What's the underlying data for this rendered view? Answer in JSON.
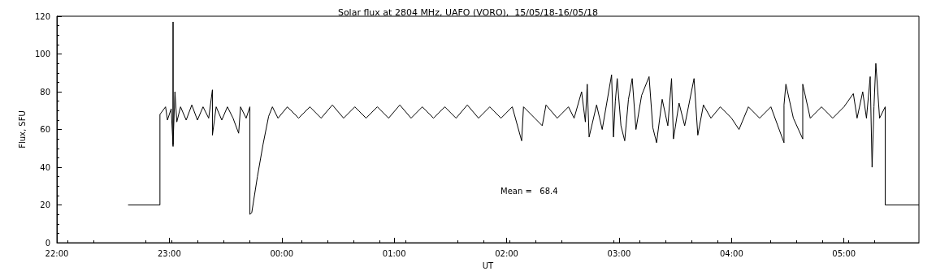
{
  "chart_data": {
    "type": "line",
    "title": "Solar flux at 2804 MHz, UAFO (VORO),  15/05/18-16/05/18",
    "xlabel": "UT",
    "ylabel": "Flux, SFU",
    "annotations": [
      "Mean =   68.4"
    ],
    "xlim": [
      "--05-15T22:00",
      "--05-16T05:40"
    ],
    "xticks": [
      {
        "value": "--05-15T22:00",
        "label": "22:00"
      },
      {
        "value": "--05-15T23:00",
        "label": "23:00"
      },
      {
        "value": "--05-16T00:00",
        "label": "00:00"
      },
      {
        "value": "--05-16T01:00",
        "label": "01:00"
      },
      {
        "value": "--05-16T02:00",
        "label": "02:00"
      },
      {
        "value": "--05-16T03:00",
        "label": "03:00"
      },
      {
        "value": "--05-16T04:00",
        "label": "04:00"
      },
      {
        "value": "--05-16T05:00",
        "label": "05:00"
      }
    ],
    "ylim": [
      0,
      120
    ],
    "yticks": [
      0,
      20,
      40,
      60,
      80,
      100,
      120
    ],
    "grid": false,
    "marker": "none",
    "line_style": "solid",
    "series": [
      {
        "color": "#000000",
        "x": [
          "--05-15T22:38",
          "--05-15T22:55",
          "--05-15T22:55",
          "--05-15T22:58",
          "--05-15T22:59",
          "--05-15T23:01",
          "--05-15T23:02",
          "--05-15T23:02",
          "--05-15T23:02",
          "--05-15T23:03",
          "--05-15T23:04",
          "--05-15T23:06",
          "--05-15T23:09",
          "--05-15T23:12",
          "--05-15T23:15",
          "--05-15T23:18",
          "--05-15T23:21",
          "--05-15T23:23",
          "--05-15T23:23",
          "--05-15T23:25",
          "--05-15T23:28",
          "--05-15T23:31",
          "--05-15T23:34",
          "--05-15T23:37",
          "--05-15T23:38",
          "--05-15T23:41",
          "--05-15T23:43",
          "--05-15T23:43",
          "--05-15T23:44",
          "--05-15T23:47",
          "--05-15T23:50",
          "--05-15T23:53",
          "--05-15T23:55",
          "--05-15T23:58",
          "--05-16T00:03",
          "--05-16T00:09",
          "--05-16T00:15",
          "--05-16T00:21",
          "--05-16T00:27",
          "--05-16T00:33",
          "--05-16T00:39",
          "--05-16T00:45",
          "--05-16T00:51",
          "--05-16T00:57",
          "--05-16T01:03",
          "--05-16T01:09",
          "--05-16T01:15",
          "--05-16T01:21",
          "--05-16T01:27",
          "--05-16T01:33",
          "--05-16T01:39",
          "--05-16T01:45",
          "--05-16T01:51",
          "--05-16T01:57",
          "--05-16T02:03",
          "--05-16T02:08",
          "--05-16T02:09",
          "--05-16T02:15",
          "--05-16T02:19",
          "--05-16T02:21",
          "--05-16T02:27",
          "--05-16T02:33",
          "--05-16T02:36",
          "--05-16T02:40",
          "--05-16T02:42",
          "--05-16T02:43",
          "--05-16T02:44",
          "--05-16T02:48",
          "--05-16T02:51",
          "--05-16T02:56",
          "--05-16T02:57",
          "--05-16T02:58",
          "--05-16T02:59",
          "--05-16T03:01",
          "--05-16T03:03",
          "--05-16T03:05",
          "--05-16T03:07",
          "--05-16T03:09",
          "--05-16T03:12",
          "--05-16T03:16",
          "--05-16T03:18",
          "--05-16T03:20",
          "--05-16T03:23",
          "--05-16T03:26",
          "--05-16T03:28",
          "--05-16T03:29",
          "--05-16T03:32",
          "--05-16T03:35",
          "--05-16T03:38",
          "--05-16T03:40",
          "--05-16T03:42",
          "--05-16T03:45",
          "--05-16T03:49",
          "--05-16T03:54",
          "--05-16T04:00",
          "--05-16T04:04",
          "--05-16T04:09",
          "--05-16T04:15",
          "--05-16T04:21",
          "--05-16T04:28",
          "--05-16T04:28",
          "--05-16T04:29",
          "--05-16T04:33",
          "--05-16T04:38",
          "--05-16T04:38",
          "--05-16T04:42",
          "--05-16T04:48",
          "--05-16T04:54",
          "--05-16T05:00",
          "--05-16T05:05",
          "--05-16T05:07",
          "--05-16T05:10",
          "--05-16T05:12",
          "--05-16T05:14",
          "--05-16T05:15",
          "--05-16T05:16",
          "--05-16T05:17",
          "--05-16T05:19",
          "--05-16T05:22",
          "--05-16T05:22",
          "--05-16T05:40"
        ],
        "values": [
          20,
          20,
          68,
          72,
          65,
          71,
          51,
          117,
          52,
          80,
          64,
          72,
          65,
          73,
          65,
          72,
          66,
          81,
          57,
          72,
          65,
          72,
          66,
          58,
          72,
          66,
          72,
          15,
          16,
          35,
          52,
          67,
          72,
          66,
          72,
          66,
          72,
          66,
          73,
          66,
          72,
          66,
          72,
          66,
          73,
          66,
          72,
          66,
          72,
          66,
          73,
          66,
          72,
          66,
          72,
          54,
          72,
          66,
          62,
          73,
          66,
          72,
          66,
          80,
          64,
          84,
          56,
          73,
          60,
          89,
          56,
          75,
          87,
          62,
          54,
          76,
          87,
          60,
          78,
          88,
          61,
          53,
          76,
          62,
          87,
          55,
          74,
          62,
          77,
          87,
          57,
          73,
          66,
          72,
          66,
          60,
          72,
          66,
          72,
          53,
          73,
          84,
          66,
          55,
          84,
          66,
          72,
          66,
          72,
          79,
          66,
          80,
          66,
          88,
          40,
          72,
          95,
          66,
          72,
          20,
          20
        ]
      }
    ]
  }
}
